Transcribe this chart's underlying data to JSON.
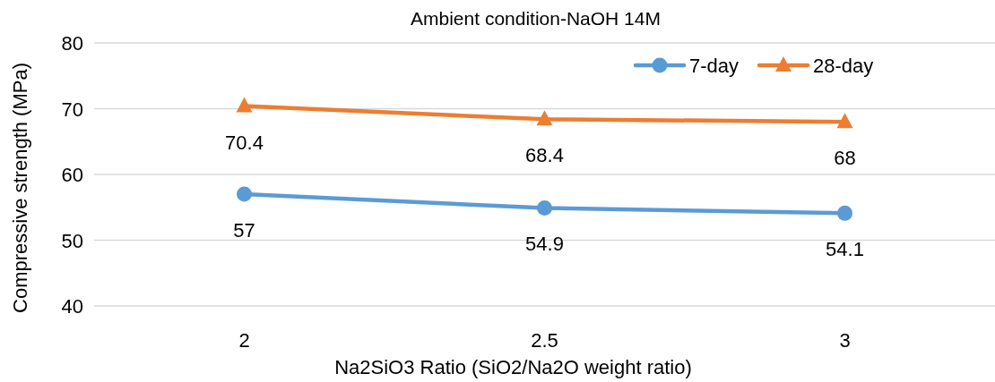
{
  "chart_data": {
    "type": "line",
    "title": "Ambient condition-NaOH 14M",
    "xlabel": "Na2SiO3 Ratio (SiO2/Na2O weight ratio)",
    "ylabel": "Compressive strength (MPa)",
    "categories": [
      "2",
      "2.5",
      "3"
    ],
    "series": [
      {
        "name": "7-day",
        "color": "#5b9bd5",
        "marker": "circle",
        "values": [
          57,
          54.9,
          54.1
        ]
      },
      {
        "name": "28-day",
        "color": "#ed7d31",
        "marker": "triangle",
        "values": [
          70.4,
          68.4,
          68
        ]
      }
    ],
    "ylim": [
      40,
      80
    ],
    "yticks": [
      40,
      50,
      60,
      70,
      80
    ],
    "grid": "y",
    "legend": "top right",
    "data_labels": true,
    "line_style": "solid"
  }
}
